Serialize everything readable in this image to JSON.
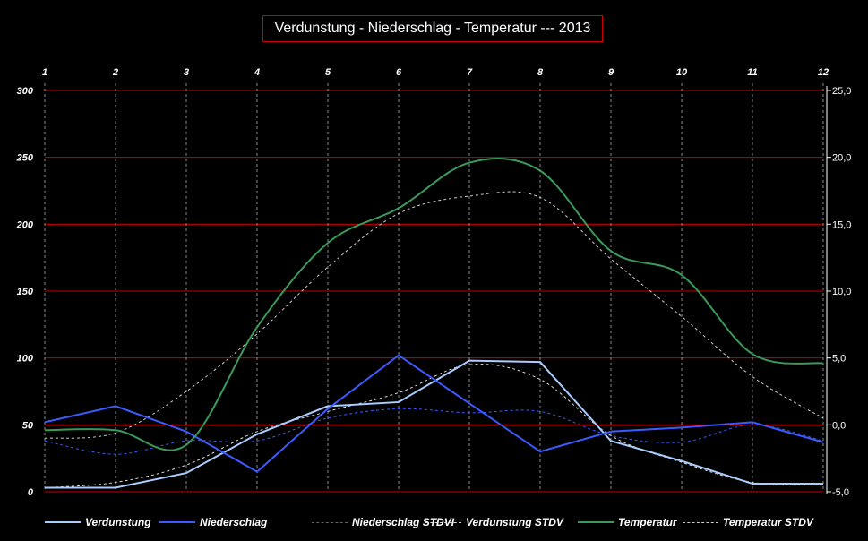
{
  "chart_data": {
    "type": "line",
    "title": "Verdunstung - Niederschlag - Temperatur --- 2013",
    "categories": [
      "1",
      "2",
      "3",
      "4",
      "5",
      "6",
      "7",
      "8",
      "9",
      "10",
      "11",
      "12"
    ],
    "y_left": {
      "ticks": [
        "0",
        "50",
        "100",
        "150",
        "200",
        "250",
        "300"
      ],
      "ylim": [
        0,
        300
      ]
    },
    "y_right": {
      "ticks": [
        "-5,0",
        "0,0",
        "5,0",
        "10,0",
        "15,0",
        "20,0",
        "25,0"
      ],
      "ylim": [
        -5,
        25
      ]
    },
    "grid": {
      "horizontal": true,
      "vertical": true
    },
    "legend_position": "bottom",
    "series": [
      {
        "name": "Verdunstung",
        "axis": "left",
        "color": "#aaccff",
        "style": "solid",
        "width": 2,
        "smooth": false,
        "values": [
          3,
          3,
          14,
          43,
          64,
          67,
          98,
          97,
          38,
          23,
          6,
          6
        ]
      },
      {
        "name": "Niederschlag",
        "axis": "left",
        "color": "#3b5bff",
        "style": "solid",
        "width": 2,
        "smooth": false,
        "values": [
          52,
          64,
          45,
          15,
          62,
          102,
          66,
          30,
          45,
          48,
          52,
          37
        ]
      },
      {
        "name": "Niederschlag STDVI",
        "axis": "left",
        "color": "#3b5bff",
        "style": "dashed",
        "width": 1,
        "smooth": true,
        "values": [
          38,
          28,
          38,
          38,
          55,
          62,
          59,
          60,
          42,
          37,
          50,
          38
        ]
      },
      {
        "name": "Verdunstung STDV",
        "axis": "left",
        "color": "#dddddd",
        "style": "dashed",
        "width": 1,
        "smooth": true,
        "values": [
          3,
          7,
          20,
          45,
          60,
          74,
          95,
          84,
          42,
          22,
          7,
          5
        ]
      },
      {
        "name": "Temperatur",
        "axis": "right",
        "color": "#3a9a5a",
        "style": "solid",
        "width": 2,
        "smooth": true,
        "values": [
          -0.4,
          -0.4,
          -1.5,
          7.3,
          13.6,
          16.2,
          19.6,
          19.0,
          13.0,
          11.2,
          5.3,
          4.6
        ]
      },
      {
        "name": "Temperatur STDV",
        "axis": "right",
        "color": "#cccccc",
        "style": "dashed",
        "width": 1,
        "smooth": true,
        "values": [
          -1.0,
          -0.6,
          2.5,
          6.8,
          11.8,
          15.8,
          17.1,
          17.0,
          12.4,
          8.1,
          3.6,
          0.5
        ]
      }
    ]
  }
}
